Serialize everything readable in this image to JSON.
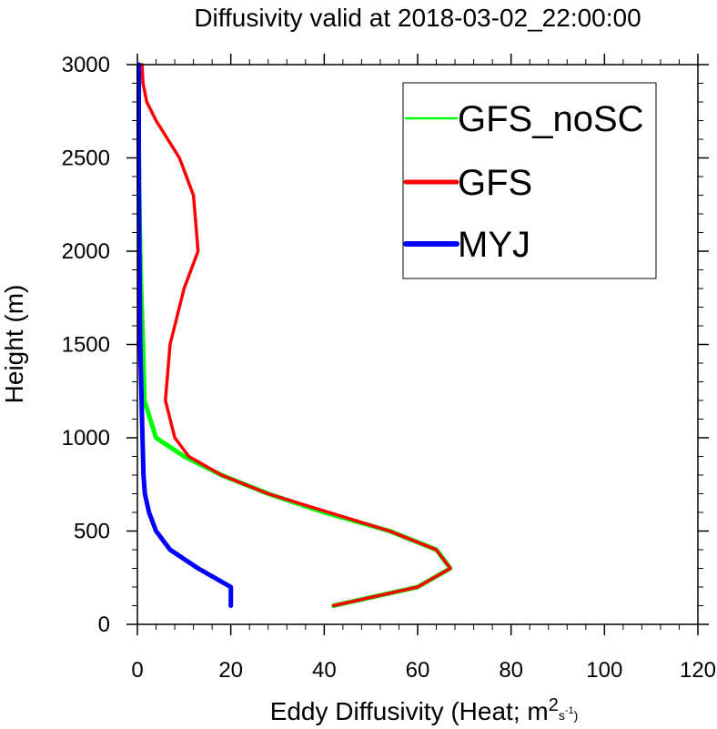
{
  "chart_data": {
    "type": "line",
    "title": "Diffusivity valid at 2018-03-02_22:00:00",
    "xlabel": "Eddy Diffusivity (Heat; m",
    "xlabel_sup": "2",
    "xlabel_unit_tail": "s",
    "xlabel_unit_tail_sup": "-1",
    "xlabel_close": ")",
    "ylabel": "Height (m)",
    "xlim": [
      0,
      120
    ],
    "ylim": [
      0,
      3000
    ],
    "xticks": [
      0,
      20,
      40,
      60,
      80,
      100,
      120
    ],
    "yticks": [
      0,
      500,
      1000,
      1500,
      2000,
      2500,
      3000
    ],
    "grid": false,
    "legend_position": "top-right",
    "series": [
      {
        "name": "GFS_noSC",
        "color": "#00ff00",
        "x": [
          42,
          60,
          67,
          64,
          54,
          40,
          28,
          18,
          10,
          4,
          1.5,
          1.2,
          0.8,
          0.6,
          0.4,
          0.3,
          0.3,
          0.4
        ],
        "y": [
          100,
          200,
          300,
          400,
          500,
          600,
          700,
          800,
          900,
          1000,
          1200,
          1500,
          1800,
          2000,
          2300,
          2600,
          2800,
          3000
        ]
      },
      {
        "name": "GFS",
        "color": "#ff0000",
        "x": [
          42,
          60,
          67,
          64,
          54,
          41,
          28,
          18,
          11,
          8,
          6,
          7,
          10,
          13,
          12,
          9,
          4,
          2,
          1.2,
          1
        ],
        "y": [
          100,
          200,
          300,
          400,
          500,
          600,
          700,
          800,
          900,
          1000,
          1200,
          1500,
          1800,
          2000,
          2300,
          2500,
          2700,
          2800,
          2900,
          3000
        ]
      },
      {
        "name": "MYJ",
        "color": "#0000ff",
        "x": [
          20,
          20,
          13,
          7,
          4,
          2.5,
          1.6,
          1.3,
          1.2,
          1.1,
          0.9,
          0.6,
          0.4,
          0.3,
          0.3,
          0.3
        ],
        "y": [
          100,
          200,
          300,
          400,
          500,
          600,
          700,
          800,
          900,
          1000,
          1200,
          1500,
          2000,
          2500,
          2800,
          3000
        ]
      }
    ]
  }
}
